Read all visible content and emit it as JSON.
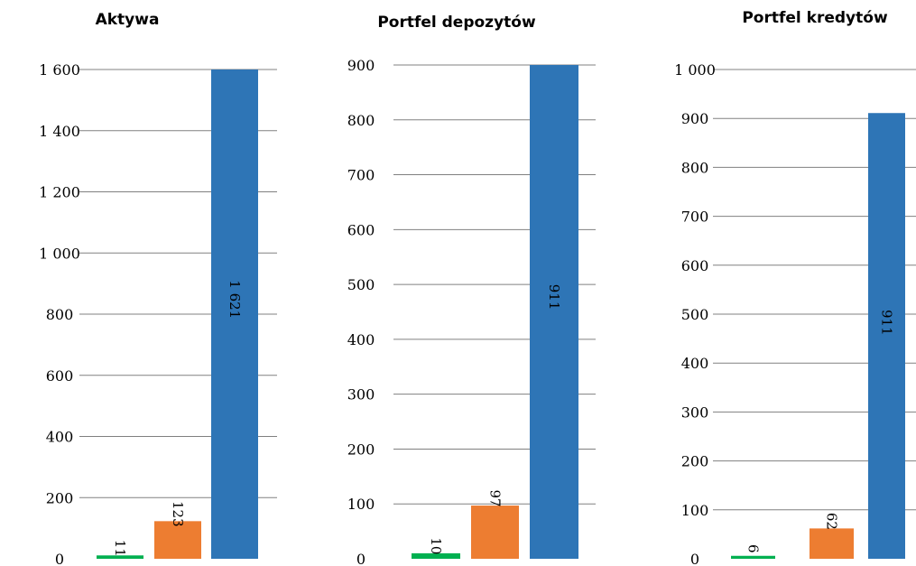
{
  "colors": {
    "green": "#00B050",
    "orange": "#ED7D31",
    "blue": "#2E75B6"
  },
  "chart_data": [
    {
      "type": "bar",
      "title": "Aktywa",
      "categories": [
        "",
        "",
        ""
      ],
      "values": [
        11,
        123,
        1621
      ],
      "value_labels": [
        "11",
        "123",
        "1 621"
      ],
      "bar_colors": [
        "green",
        "orange",
        "blue"
      ],
      "ylim": [
        0,
        1600
      ],
      "yticks": [
        0,
        200,
        400,
        600,
        800,
        1000,
        1200,
        1400,
        1600
      ],
      "ytick_labels": [
        "0",
        "200",
        "400",
        "600",
        "800",
        "1 000",
        "1 200",
        "1 400",
        "1 600"
      ],
      "grid": true,
      "xlabel": "",
      "ylabel": ""
    },
    {
      "type": "bar",
      "title": "Portfel depozytów",
      "categories": [
        "",
        "",
        ""
      ],
      "values": [
        10,
        97,
        911
      ],
      "value_labels": [
        "10",
        "97",
        "911"
      ],
      "bar_colors": [
        "green",
        "orange",
        "blue"
      ],
      "ylim": [
        0,
        900
      ],
      "yticks": [
        0,
        100,
        200,
        300,
        400,
        500,
        600,
        700,
        800,
        900
      ],
      "ytick_labels": [
        "0",
        "100",
        "200",
        "300",
        "400",
        "500",
        "600",
        "700",
        "800",
        "900"
      ],
      "grid": true,
      "xlabel": "",
      "ylabel": ""
    },
    {
      "type": "bar",
      "title": "Portfel kredytów",
      "categories": [
        "",
        "",
        ""
      ],
      "values": [
        6,
        62,
        911
      ],
      "value_labels": [
        "6",
        "62",
        "911"
      ],
      "bar_colors": [
        "green",
        "orange",
        "blue"
      ],
      "ylim": [
        0,
        1000
      ],
      "yticks": [
        0,
        100,
        200,
        300,
        400,
        500,
        600,
        700,
        800,
        900,
        1000
      ],
      "ytick_labels": [
        "0",
        "100",
        "200",
        "300",
        "400",
        "500",
        "600",
        "700",
        "800",
        "900",
        "1 000"
      ],
      "grid": true,
      "xlabel": "",
      "ylabel": ""
    }
  ]
}
